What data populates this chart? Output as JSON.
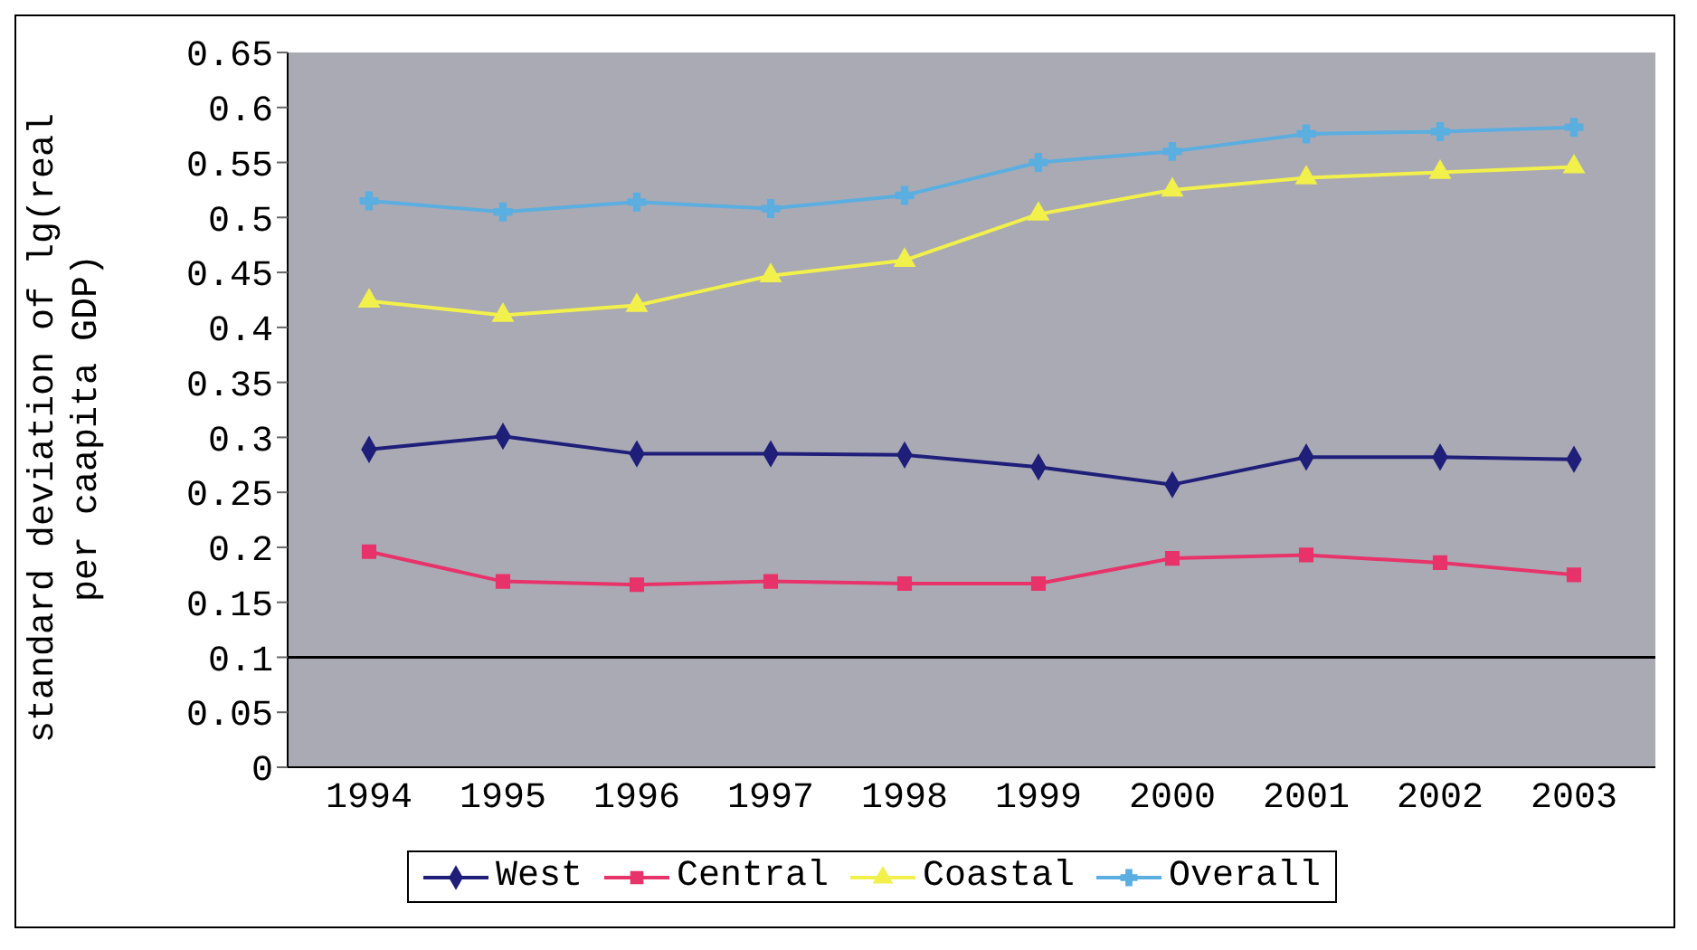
{
  "chart_data": {
    "type": "line",
    "ylabel": "standard deviation of lg(real per caapita GDP)",
    "categories": [
      "1994",
      "1995",
      "1996",
      "1997",
      "1998",
      "1999",
      "2000",
      "2001",
      "2002",
      "2003"
    ],
    "series": [
      {
        "name": "West",
        "color": "#1f1f7a",
        "marker": "diamond",
        "values": [
          0.289,
          0.301,
          0.285,
          0.285,
          0.284,
          0.273,
          0.257,
          0.282,
          0.282,
          0.28
        ]
      },
      {
        "name": "Central",
        "color": "#e8336a",
        "marker": "square",
        "values": [
          0.196,
          0.169,
          0.166,
          0.169,
          0.167,
          0.167,
          0.19,
          0.193,
          0.186,
          0.175
        ]
      },
      {
        "name": "Coastal",
        "color": "#f2f04a",
        "marker": "triangle",
        "values": [
          0.424,
          0.411,
          0.42,
          0.447,
          0.461,
          0.503,
          0.525,
          0.536,
          0.541,
          0.546
        ]
      },
      {
        "name": "Overall",
        "color": "#5aaee0",
        "marker": "cross",
        "values": [
          0.515,
          0.505,
          0.514,
          0.508,
          0.52,
          0.55,
          0.56,
          0.576,
          0.578,
          0.582
        ]
      }
    ],
    "ylim": [
      0,
      0.65
    ],
    "yticks": [
      0,
      0.05,
      0.1,
      0.15,
      0.2,
      0.25,
      0.3,
      0.35,
      0.4,
      0.45,
      0.5,
      0.55,
      0.6,
      0.65
    ],
    "ref_lines": [
      {
        "axis": "y",
        "value": 0.1,
        "color": "#000000"
      }
    ],
    "grid": false,
    "legend": "bottom"
  }
}
